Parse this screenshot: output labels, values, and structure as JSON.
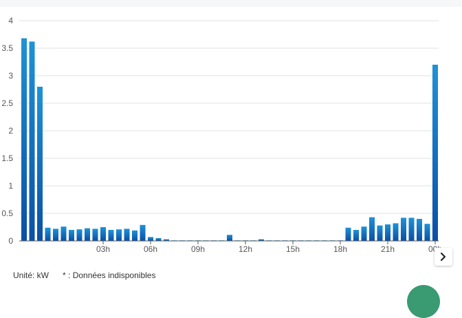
{
  "chart_data": {
    "type": "bar",
    "title": "",
    "xlabel": "",
    "ylabel": "",
    "ylim": [
      0,
      4
    ],
    "yticks": [
      "0",
      "0.5",
      "1",
      "1.5",
      "2",
      "2.5",
      "3",
      "3.5",
      "4"
    ],
    "xticks": [
      "03h",
      "06h",
      "09h",
      "12h",
      "15h",
      "18h",
      "21h",
      "00h"
    ],
    "grid": true,
    "values": [
      3.68,
      3.62,
      2.8,
      0.24,
      0.22,
      0.26,
      0.2,
      0.21,
      0.23,
      0.22,
      0.25,
      0.2,
      0.21,
      0.22,
      0.19,
      0.29,
      0.07,
      0.05,
      0.03,
      0.01,
      0.01,
      0.01,
      0.01,
      0.01,
      0.01,
      0.01,
      0.11,
      0.01,
      0.01,
      0.01,
      0.03,
      0.01,
      0.01,
      0.01,
      0.01,
      0.01,
      0.01,
      0.01,
      0.01,
      0.01,
      0.01,
      0.24,
      0.2,
      0.26,
      0.43,
      0.28,
      0.3,
      0.32,
      0.42,
      0.42,
      0.4,
      0.31,
      3.2
    ],
    "bar_color_top": "#1f92d6",
    "bar_color_bottom": "#0a4fa6"
  },
  "footer": {
    "unit_label": "Unité: kW",
    "note_label": "* : Données indisponibles"
  },
  "controls": {
    "next_icon": "chevron-right-icon"
  },
  "colors": {
    "grid": "#e2e2e2",
    "axis": "#555555",
    "tick_text": "#555555",
    "fab": "#3a9a72"
  }
}
